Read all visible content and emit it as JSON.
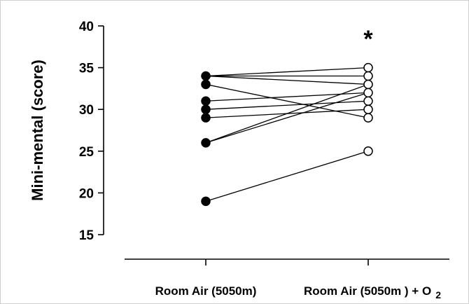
{
  "chart_data": {
    "type": "scatter",
    "subtype": "paired-dot",
    "title": "",
    "xlabel": "",
    "ylabel": "Mini-mental (score)",
    "ylim": [
      15,
      40
    ],
    "yticks": [
      15,
      20,
      25,
      30,
      35,
      40
    ],
    "grid": false,
    "categories": [
      "Room Air (5050m)",
      "Room Air (5050m ) + O"
    ],
    "category_subscript": [
      "",
      "2"
    ],
    "significance_marker": "*",
    "significance_category": 1,
    "series": [
      {
        "marker": "filled",
        "category": 0
      },
      {
        "marker": "open",
        "category": 1
      }
    ],
    "pairs": [
      [
        34,
        35
      ],
      [
        34,
        34
      ],
      [
        34,
        33
      ],
      [
        33,
        29
      ],
      [
        31,
        32
      ],
      [
        30,
        31
      ],
      [
        29,
        30
      ],
      [
        26,
        32
      ],
      [
        26,
        33
      ],
      [
        19,
        25
      ]
    ]
  },
  "colors": {
    "filled_marker": "#000000",
    "open_marker": "#ffffff",
    "line": "#000000"
  }
}
